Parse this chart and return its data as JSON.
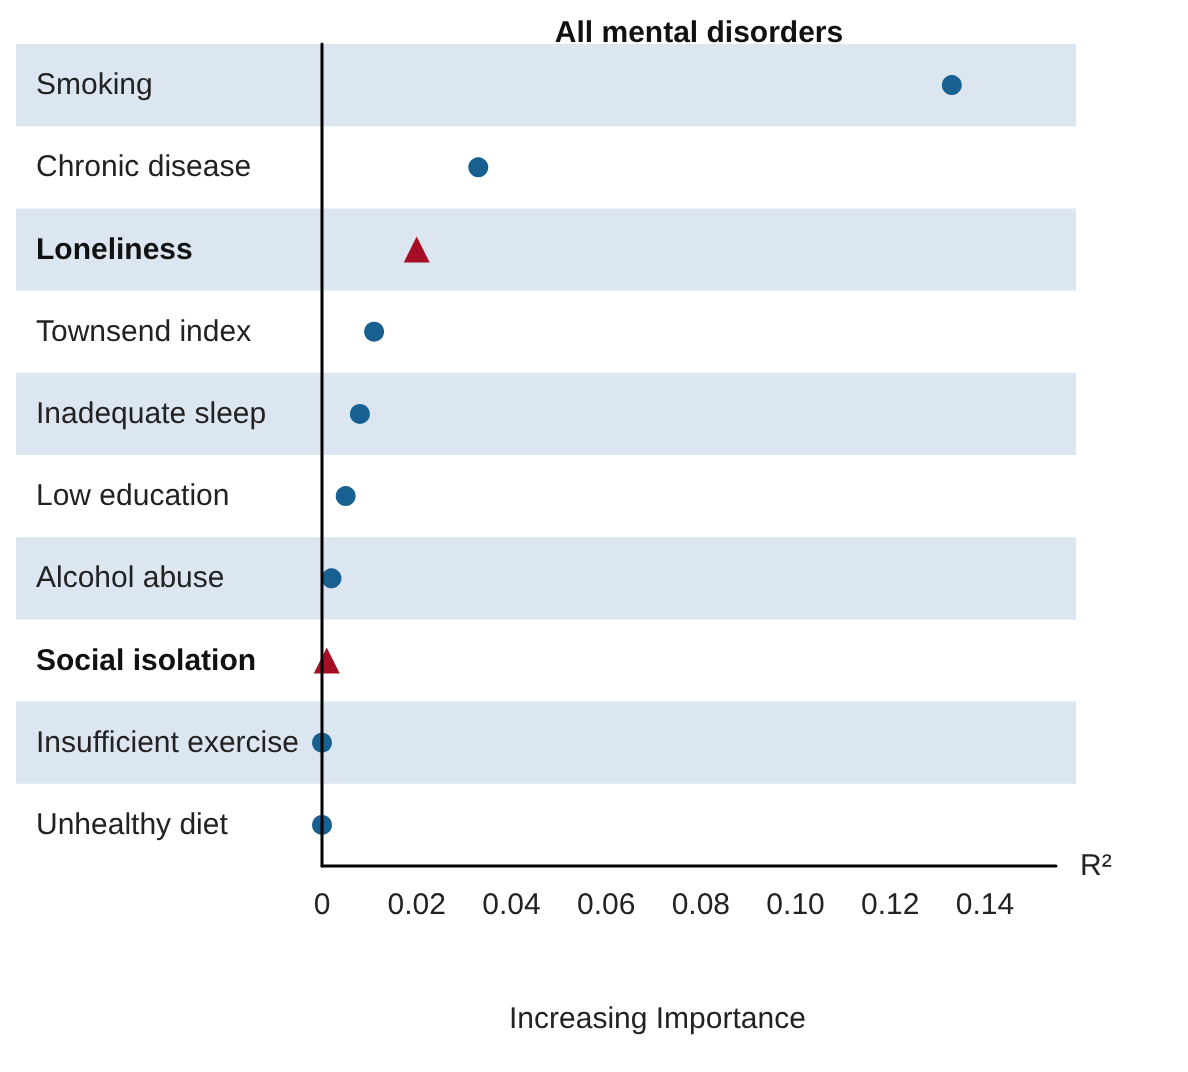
{
  "chart_data": {
    "type": "scatter",
    "orientation": "horizontal",
    "title": "All mental disorders",
    "xlabel": "R²",
    "annotations": [
      "Increasing Importance"
    ],
    "categories": [
      "Smoking",
      "Chronic disease",
      "Loneliness",
      "Townsend index",
      "Inadequate sleep",
      "Low education",
      "Alcohol abuse",
      "Social isolation",
      "Insufficient exercise",
      "Unhealthy diet"
    ],
    "series": [
      {
        "color": "#17608f",
        "marker": "circle",
        "values": [
          0.133,
          0.033,
          null,
          0.011,
          0.008,
          0.005,
          0.002,
          null,
          0.0,
          0.0
        ]
      },
      {
        "color": "#a50f26",
        "marker": "triangle",
        "values": [
          null,
          null,
          0.02,
          null,
          null,
          null,
          null,
          0.001,
          null,
          null
        ]
      }
    ],
    "xlim": [
      0,
      0.155
    ],
    "xticks": [
      0,
      {
        "value": 0.02,
        "label": "0.02"
      },
      {
        "value": 0.04,
        "label": "0.04"
      },
      {
        "value": 0.06,
        "label": "0.06"
      },
      {
        "value": 0.08,
        "label": "0.08"
      },
      {
        "value": 0.1,
        "label": "0.10"
      },
      {
        "value": 0.12,
        "label": "0.12"
      },
      {
        "value": 0.14,
        "label": "0.14"
      }
    ],
    "bands": [
      {
        "axis": "y",
        "from": "Smoking",
        "to": "Smoking",
        "color": "#dce6f1"
      },
      {
        "axis": "y",
        "from": "Loneliness",
        "to": "Loneliness",
        "color": "#dce6f1"
      },
      {
        "axis": "y",
        "from": "Inadequate sleep",
        "to": "Inadequate sleep",
        "color": "#dce6f1"
      },
      {
        "axis": "y",
        "from": "Alcohol abuse",
        "to": "Alcohol abuse",
        "color": "#dce6f1"
      },
      {
        "axis": "y",
        "from": "Insufficient exercise",
        "to": "Insufficient exercise",
        "color": "#dce6f1"
      }
    ],
    "grid": false
  }
}
